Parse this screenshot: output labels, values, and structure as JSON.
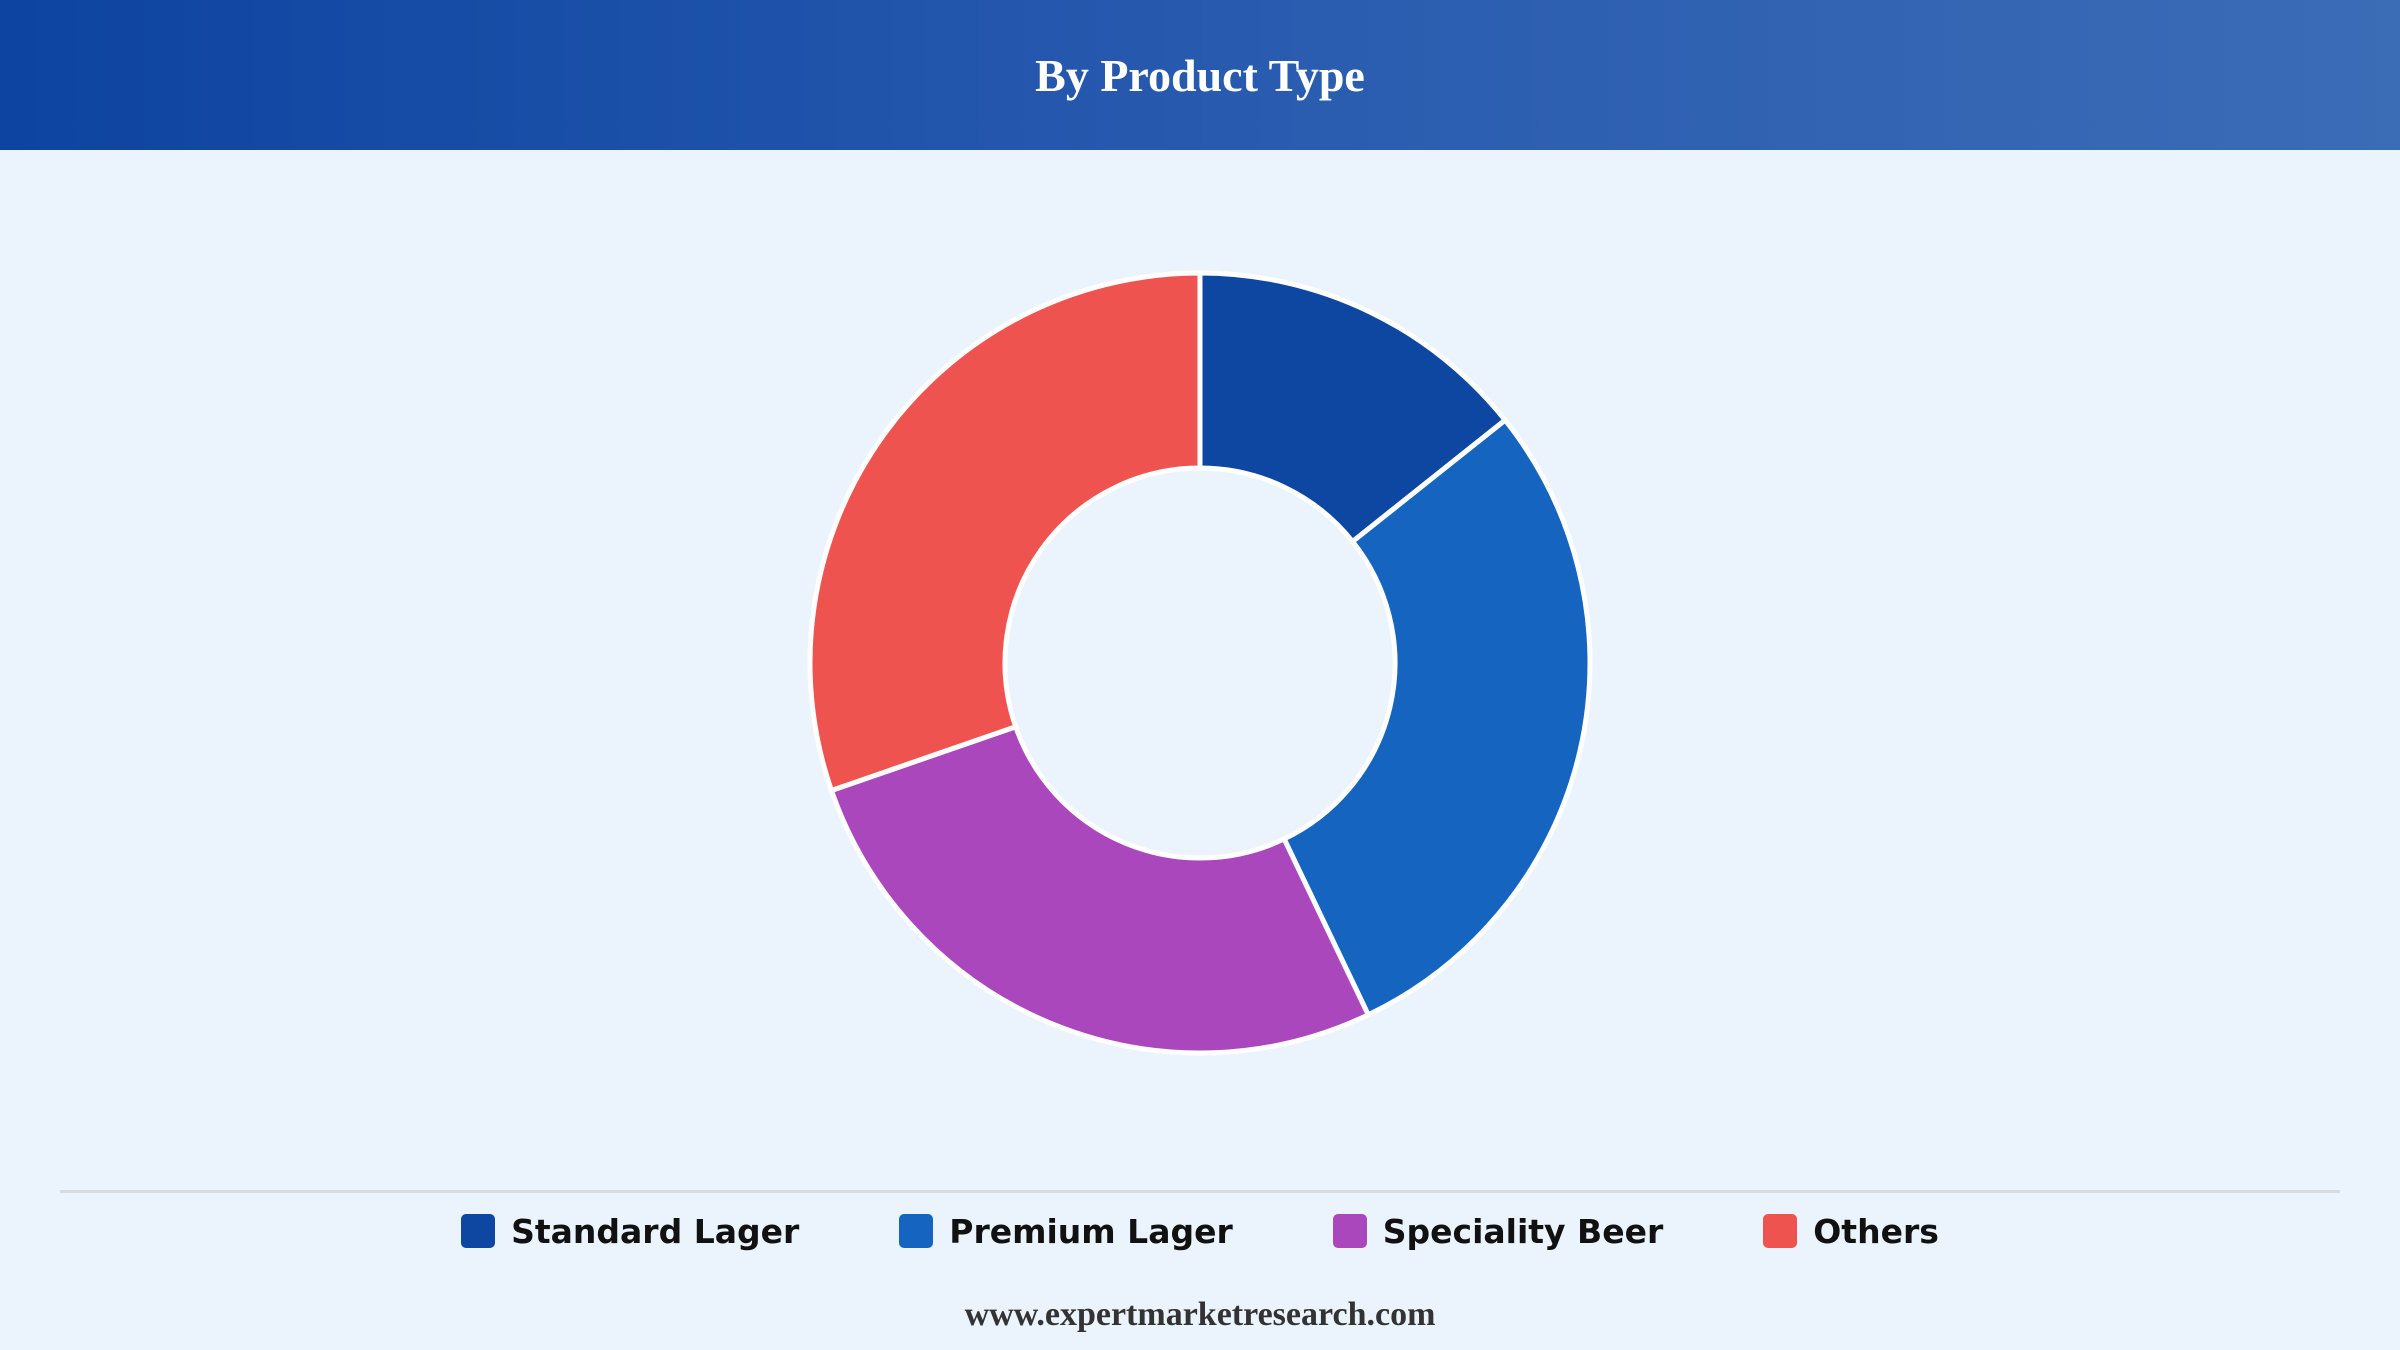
{
  "header": {
    "title": "By Product Type"
  },
  "chart_data": {
    "type": "pie",
    "subtype": "donut",
    "title": "By Product Type",
    "categories": [
      "Standard Lager",
      "Premium Lager",
      "Speciality Beer",
      "Others"
    ],
    "values": [
      14.3,
      28.6,
      26.8,
      30.3
    ],
    "unit": "%",
    "colors": [
      "#0e47a1",
      "#1565c0",
      "#ab47bc",
      "#ef5350"
    ],
    "legend_position": "bottom",
    "data_labels": false
  },
  "footer": {
    "text": "www.expertmarketresearch.com"
  }
}
